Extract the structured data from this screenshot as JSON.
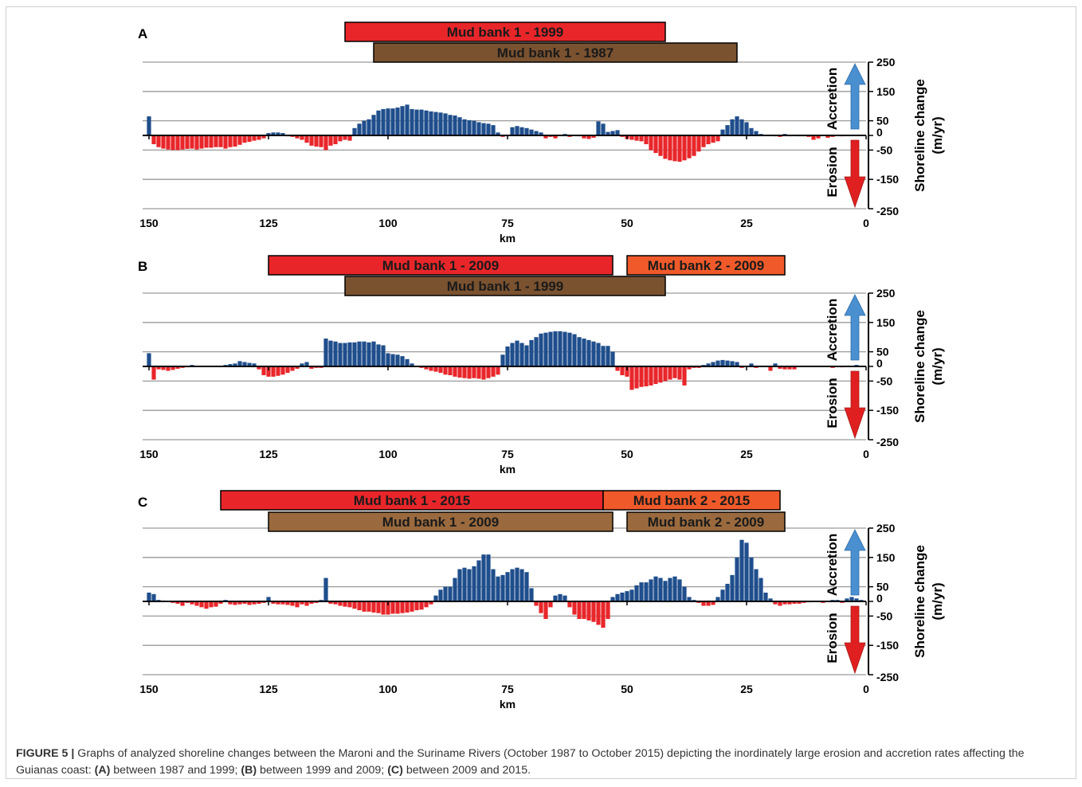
{
  "figure": {
    "caption_label": "FIGURE 5 |",
    "caption_text": "Graphs of analyzed shoreline changes between the Maroni and the Suriname Rivers (October 1987 to October 2015) depicting the inordinately large erosion and accretion rates affecting the Guianas coast: ",
    "caption_a_label": "(A)",
    "caption_a_text": " between 1987 and 1999; ",
    "caption_b_label": "(B)",
    "caption_b_text": " between 1999 and 2009; ",
    "caption_c_label": "(C)",
    "caption_c_text": " between 2009 and 2015."
  },
  "colors": {
    "accretion_bar": "#1f4e8c",
    "erosion_bar": "#e8262a",
    "mud_bank_new": "#e8262a",
    "mud_bank_old": "#7a5230",
    "mud_bank_2_new": "#f05a2a",
    "mud_bank_2_old": "#9a6a3e",
    "accretion_arrow": "#4a90d0",
    "erosion_arrow": "#e02020",
    "gridline": "#9a9a9a"
  },
  "chart_data": [
    {
      "type": "bar",
      "panel": "A",
      "xlabel": "km",
      "ylabel": "Shoreline change (m/yr)",
      "side_labels": {
        "accretion": "Accretion",
        "erosion": "Erosion"
      },
      "xlim": [
        150,
        0
      ],
      "ylim": [
        -250,
        250
      ],
      "xticks": [
        150,
        125,
        100,
        75,
        50,
        25,
        0
      ],
      "yticks": [
        250,
        150,
        50,
        0,
        -50,
        -150,
        -250
      ],
      "grid": "horizontal",
      "bands": [
        {
          "label": "Mud bank 1 - 1999",
          "from": 109,
          "to": 42,
          "row": 1,
          "color": "#e8262a"
        },
        {
          "label": "Mud bank 1 - 1987",
          "from": 103,
          "to": 27,
          "row": 2,
          "color": "#7a5230"
        }
      ],
      "x": [
        150,
        149,
        148,
        147,
        146,
        145,
        144,
        143,
        142,
        141,
        140,
        139,
        138,
        137,
        136,
        135,
        134,
        133,
        132,
        131,
        130,
        129,
        128,
        127,
        126,
        125,
        124,
        123,
        122,
        121,
        120,
        119,
        118,
        117,
        116,
        115,
        114,
        113,
        112,
        111,
        110,
        109,
        108,
        107,
        106,
        105,
        104,
        103,
        102,
        101,
        100,
        99,
        98,
        97,
        96,
        95,
        94,
        93,
        92,
        91,
        90,
        89,
        88,
        87,
        86,
        85,
        84,
        83,
        82,
        81,
        80,
        79,
        78,
        77,
        76,
        75,
        74,
        73,
        72,
        71,
        70,
        69,
        68,
        67,
        66,
        65,
        64,
        63,
        62,
        61,
        60,
        59,
        58,
        57,
        56,
        55,
        54,
        53,
        52,
        51,
        50,
        49,
        48,
        47,
        46,
        45,
        44,
        43,
        42,
        41,
        40,
        39,
        38,
        37,
        36,
        35,
        34,
        33,
        32,
        31,
        30,
        29,
        28,
        27,
        26,
        25,
        24,
        23,
        22,
        21,
        20,
        19,
        18,
        17,
        16,
        15,
        14,
        13,
        12,
        11,
        10,
        9,
        8,
        7,
        6,
        5,
        4,
        3,
        2,
        1
      ],
      "values": [
        65,
        -30,
        -40,
        -45,
        -48,
        -50,
        -50,
        -48,
        -46,
        -45,
        -48,
        -45,
        -42,
        -42,
        -40,
        -40,
        -45,
        -40,
        -38,
        -32,
        -25,
        -22,
        -18,
        -15,
        -10,
        8,
        10,
        10,
        8,
        -3,
        -5,
        -10,
        -15,
        -25,
        -35,
        -38,
        -40,
        -50,
        -35,
        -30,
        -20,
        -15,
        -18,
        25,
        40,
        50,
        55,
        70,
        85,
        90,
        92,
        92,
        95,
        100,
        105,
        90,
        88,
        88,
        85,
        82,
        80,
        78,
        75,
        70,
        68,
        62,
        55,
        52,
        50,
        45,
        42,
        40,
        35,
        10,
        -5,
        0,
        28,
        32,
        28,
        25,
        20,
        15,
        10,
        -10,
        -5,
        -10,
        0,
        5,
        -5,
        0,
        -3,
        -10,
        -12,
        -8,
        48,
        40,
        12,
        15,
        18,
        -5,
        -12,
        -15,
        -18,
        -20,
        -30,
        -50,
        -60,
        -70,
        -80,
        -85,
        -88,
        -90,
        -85,
        -78,
        -70,
        -55,
        -40,
        -30,
        -25,
        -20,
        20,
        35,
        55,
        65,
        55,
        45,
        25,
        15,
        5,
        0,
        0,
        -3,
        -5,
        5,
        -3,
        0,
        -3,
        -3,
        -5,
        -15,
        -10,
        0,
        -8,
        -5,
        0,
        -3,
        0,
        0,
        0,
        0
      ]
    },
    {
      "type": "bar",
      "panel": "B",
      "xlabel": "km",
      "ylabel": "Shoreline change (m/yr)",
      "side_labels": {
        "accretion": "Accretion",
        "erosion": "Erosion"
      },
      "xlim": [
        150,
        0
      ],
      "ylim": [
        -250,
        250
      ],
      "xticks": [
        150,
        125,
        100,
        75,
        50,
        25,
        0
      ],
      "yticks": [
        250,
        150,
        50,
        0,
        -50,
        -150,
        -250
      ],
      "grid": "horizontal",
      "bands": [
        {
          "label": "Mud bank 1 - 2009",
          "from": 125,
          "to": 53,
          "row": 1,
          "color": "#e8262a"
        },
        {
          "label": "Mud bank 2 - 2009",
          "from": 50,
          "to": 17,
          "row": 1,
          "color": "#f05a2a"
        },
        {
          "label": "Mud bank 1 - 1999",
          "from": 109,
          "to": 42,
          "row": 2,
          "color": "#7a5230"
        }
      ],
      "x": [
        150,
        149,
        148,
        147,
        146,
        145,
        144,
        143,
        142,
        141,
        140,
        139,
        138,
        137,
        136,
        135,
        134,
        133,
        132,
        131,
        130,
        129,
        128,
        127,
        126,
        125,
        124,
        123,
        122,
        121,
        120,
        119,
        118,
        117,
        116,
        115,
        114,
        113,
        112,
        111,
        110,
        109,
        108,
        107,
        106,
        105,
        104,
        103,
        102,
        101,
        100,
        99,
        98,
        97,
        96,
        95,
        94,
        93,
        92,
        91,
        90,
        89,
        88,
        87,
        86,
        85,
        84,
        83,
        82,
        81,
        80,
        79,
        78,
        77,
        76,
        75,
        74,
        73,
        72,
        71,
        70,
        69,
        68,
        67,
        66,
        65,
        64,
        63,
        62,
        61,
        60,
        59,
        58,
        57,
        56,
        55,
        54,
        53,
        52,
        51,
        50,
        49,
        48,
        47,
        46,
        45,
        44,
        43,
        42,
        41,
        40,
        39,
        38,
        37,
        36,
        35,
        34,
        33,
        32,
        31,
        30,
        29,
        28,
        27,
        26,
        25,
        24,
        23,
        22,
        21,
        20,
        19,
        18,
        17,
        16,
        15,
        14,
        13,
        12,
        11,
        10,
        9,
        8,
        7,
        6,
        5,
        4,
        3,
        2,
        1
      ],
      "values": [
        45,
        -45,
        -10,
        -12,
        -15,
        -12,
        -8,
        -5,
        -3,
        5,
        0,
        0,
        0,
        0,
        0,
        0,
        5,
        8,
        10,
        18,
        15,
        12,
        10,
        -10,
        -30,
        -35,
        -35,
        -32,
        -28,
        -22,
        -15,
        -8,
        10,
        15,
        -8,
        -5,
        -5,
        95,
        88,
        85,
        80,
        80,
        82,
        82,
        85,
        85,
        82,
        85,
        75,
        72,
        45,
        42,
        40,
        35,
        25,
        10,
        0,
        -5,
        -10,
        -15,
        -18,
        -22,
        -28,
        -30,
        -35,
        -38,
        -40,
        -42,
        -40,
        -42,
        -45,
        -40,
        -35,
        -28,
        40,
        68,
        80,
        88,
        80,
        72,
        90,
        100,
        112,
        115,
        118,
        120,
        120,
        118,
        115,
        110,
        100,
        95,
        90,
        85,
        80,
        70,
        70,
        50,
        -15,
        -30,
        -35,
        -80,
        -75,
        -70,
        -68,
        -65,
        -60,
        -55,
        -50,
        -45,
        -40,
        -45,
        -65,
        -10,
        -5,
        -5,
        5,
        10,
        15,
        20,
        22,
        20,
        18,
        15,
        -5,
        0,
        10,
        -5,
        0,
        0,
        -15,
        10,
        -8,
        -10,
        -10,
        -10,
        0,
        0,
        0,
        0,
        0,
        0,
        0,
        -5,
        0,
        -3,
        0,
        0,
        5,
        0
      ]
    },
    {
      "type": "bar",
      "panel": "C",
      "xlabel": "km",
      "ylabel": "Shoreline change (m/yr)",
      "side_labels": {
        "accretion": "Accretion",
        "erosion": "Erosion"
      },
      "xlim": [
        150,
        0
      ],
      "ylim": [
        -250,
        250
      ],
      "xticks": [
        150,
        125,
        100,
        75,
        50,
        25,
        0
      ],
      "yticks": [
        250,
        150,
        50,
        0,
        -50,
        -150,
        -250
      ],
      "grid": "horizontal",
      "bands": [
        {
          "label": "Mud bank 1 - 2015",
          "from": 135,
          "to": 55,
          "row": 1,
          "color": "#e8262a"
        },
        {
          "label": "Mud bank 2 - 2015",
          "from": 55,
          "to": 18,
          "row": 1,
          "color": "#f05a2a"
        },
        {
          "label": "Mud bank 1 - 2009",
          "from": 125,
          "to": 53,
          "row": 2,
          "color": "#9a6a3e"
        },
        {
          "label": "Mud bank 2 - 2009",
          "from": 50,
          "to": 17,
          "row": 2,
          "color": "#9a6a3e"
        }
      ],
      "x": [
        150,
        149,
        148,
        147,
        146,
        145,
        144,
        143,
        142,
        141,
        140,
        139,
        138,
        137,
        136,
        135,
        134,
        133,
        132,
        131,
        130,
        129,
        128,
        127,
        126,
        125,
        124,
        123,
        122,
        121,
        120,
        119,
        118,
        117,
        116,
        115,
        114,
        113,
        112,
        111,
        110,
        109,
        108,
        107,
        106,
        105,
        104,
        103,
        102,
        101,
        100,
        99,
        98,
        97,
        96,
        95,
        94,
        93,
        92,
        91,
        90,
        89,
        88,
        87,
        86,
        85,
        84,
        83,
        82,
        81,
        80,
        79,
        78,
        77,
        76,
        75,
        74,
        73,
        72,
        71,
        70,
        69,
        68,
        67,
        66,
        65,
        64,
        63,
        62,
        61,
        60,
        59,
        58,
        57,
        56,
        55,
        54,
        53,
        52,
        51,
        50,
        49,
        48,
        47,
        46,
        45,
        44,
        43,
        42,
        41,
        40,
        39,
        38,
        37,
        36,
        35,
        34,
        33,
        32,
        31,
        30,
        29,
        28,
        27,
        26,
        25,
        24,
        23,
        22,
        21,
        20,
        19,
        18,
        17,
        16,
        15,
        14,
        13,
        12,
        11,
        10,
        9,
        8,
        7,
        6,
        5,
        4,
        3,
        2,
        1
      ],
      "values": [
        30,
        25,
        5,
        3,
        0,
        -5,
        -8,
        -15,
        -5,
        -10,
        -15,
        -20,
        -25,
        -20,
        -18,
        -8,
        5,
        -10,
        -12,
        -10,
        -8,
        -12,
        -10,
        -8,
        -5,
        15,
        -8,
        -10,
        -10,
        -12,
        -15,
        -20,
        -10,
        -15,
        -8,
        -5,
        5,
        80,
        -8,
        -10,
        -15,
        -18,
        -20,
        -25,
        -30,
        -35,
        -35,
        -38,
        -40,
        -45,
        -45,
        -42,
        -42,
        -40,
        -38,
        -35,
        -30,
        -28,
        -20,
        -10,
        20,
        40,
        50,
        50,
        80,
        110,
        115,
        110,
        120,
        140,
        160,
        160,
        110,
        85,
        90,
        100,
        110,
        115,
        110,
        100,
        45,
        -15,
        -40,
        -60,
        -20,
        20,
        25,
        20,
        -20,
        -45,
        -60,
        -60,
        -65,
        -70,
        -80,
        -90,
        -60,
        15,
        25,
        30,
        35,
        40,
        55,
        65,
        65,
        75,
        85,
        80,
        70,
        80,
        85,
        75,
        50,
        15,
        5,
        -5,
        -15,
        -15,
        -12,
        15,
        40,
        60,
        90,
        150,
        210,
        200,
        150,
        110,
        80,
        30,
        10,
        -10,
        -15,
        -10,
        -10,
        -8,
        -8,
        -5,
        -3,
        0,
        0,
        -5,
        0,
        5,
        5,
        -5,
        10,
        15,
        10,
        5
      ]
    }
  ]
}
